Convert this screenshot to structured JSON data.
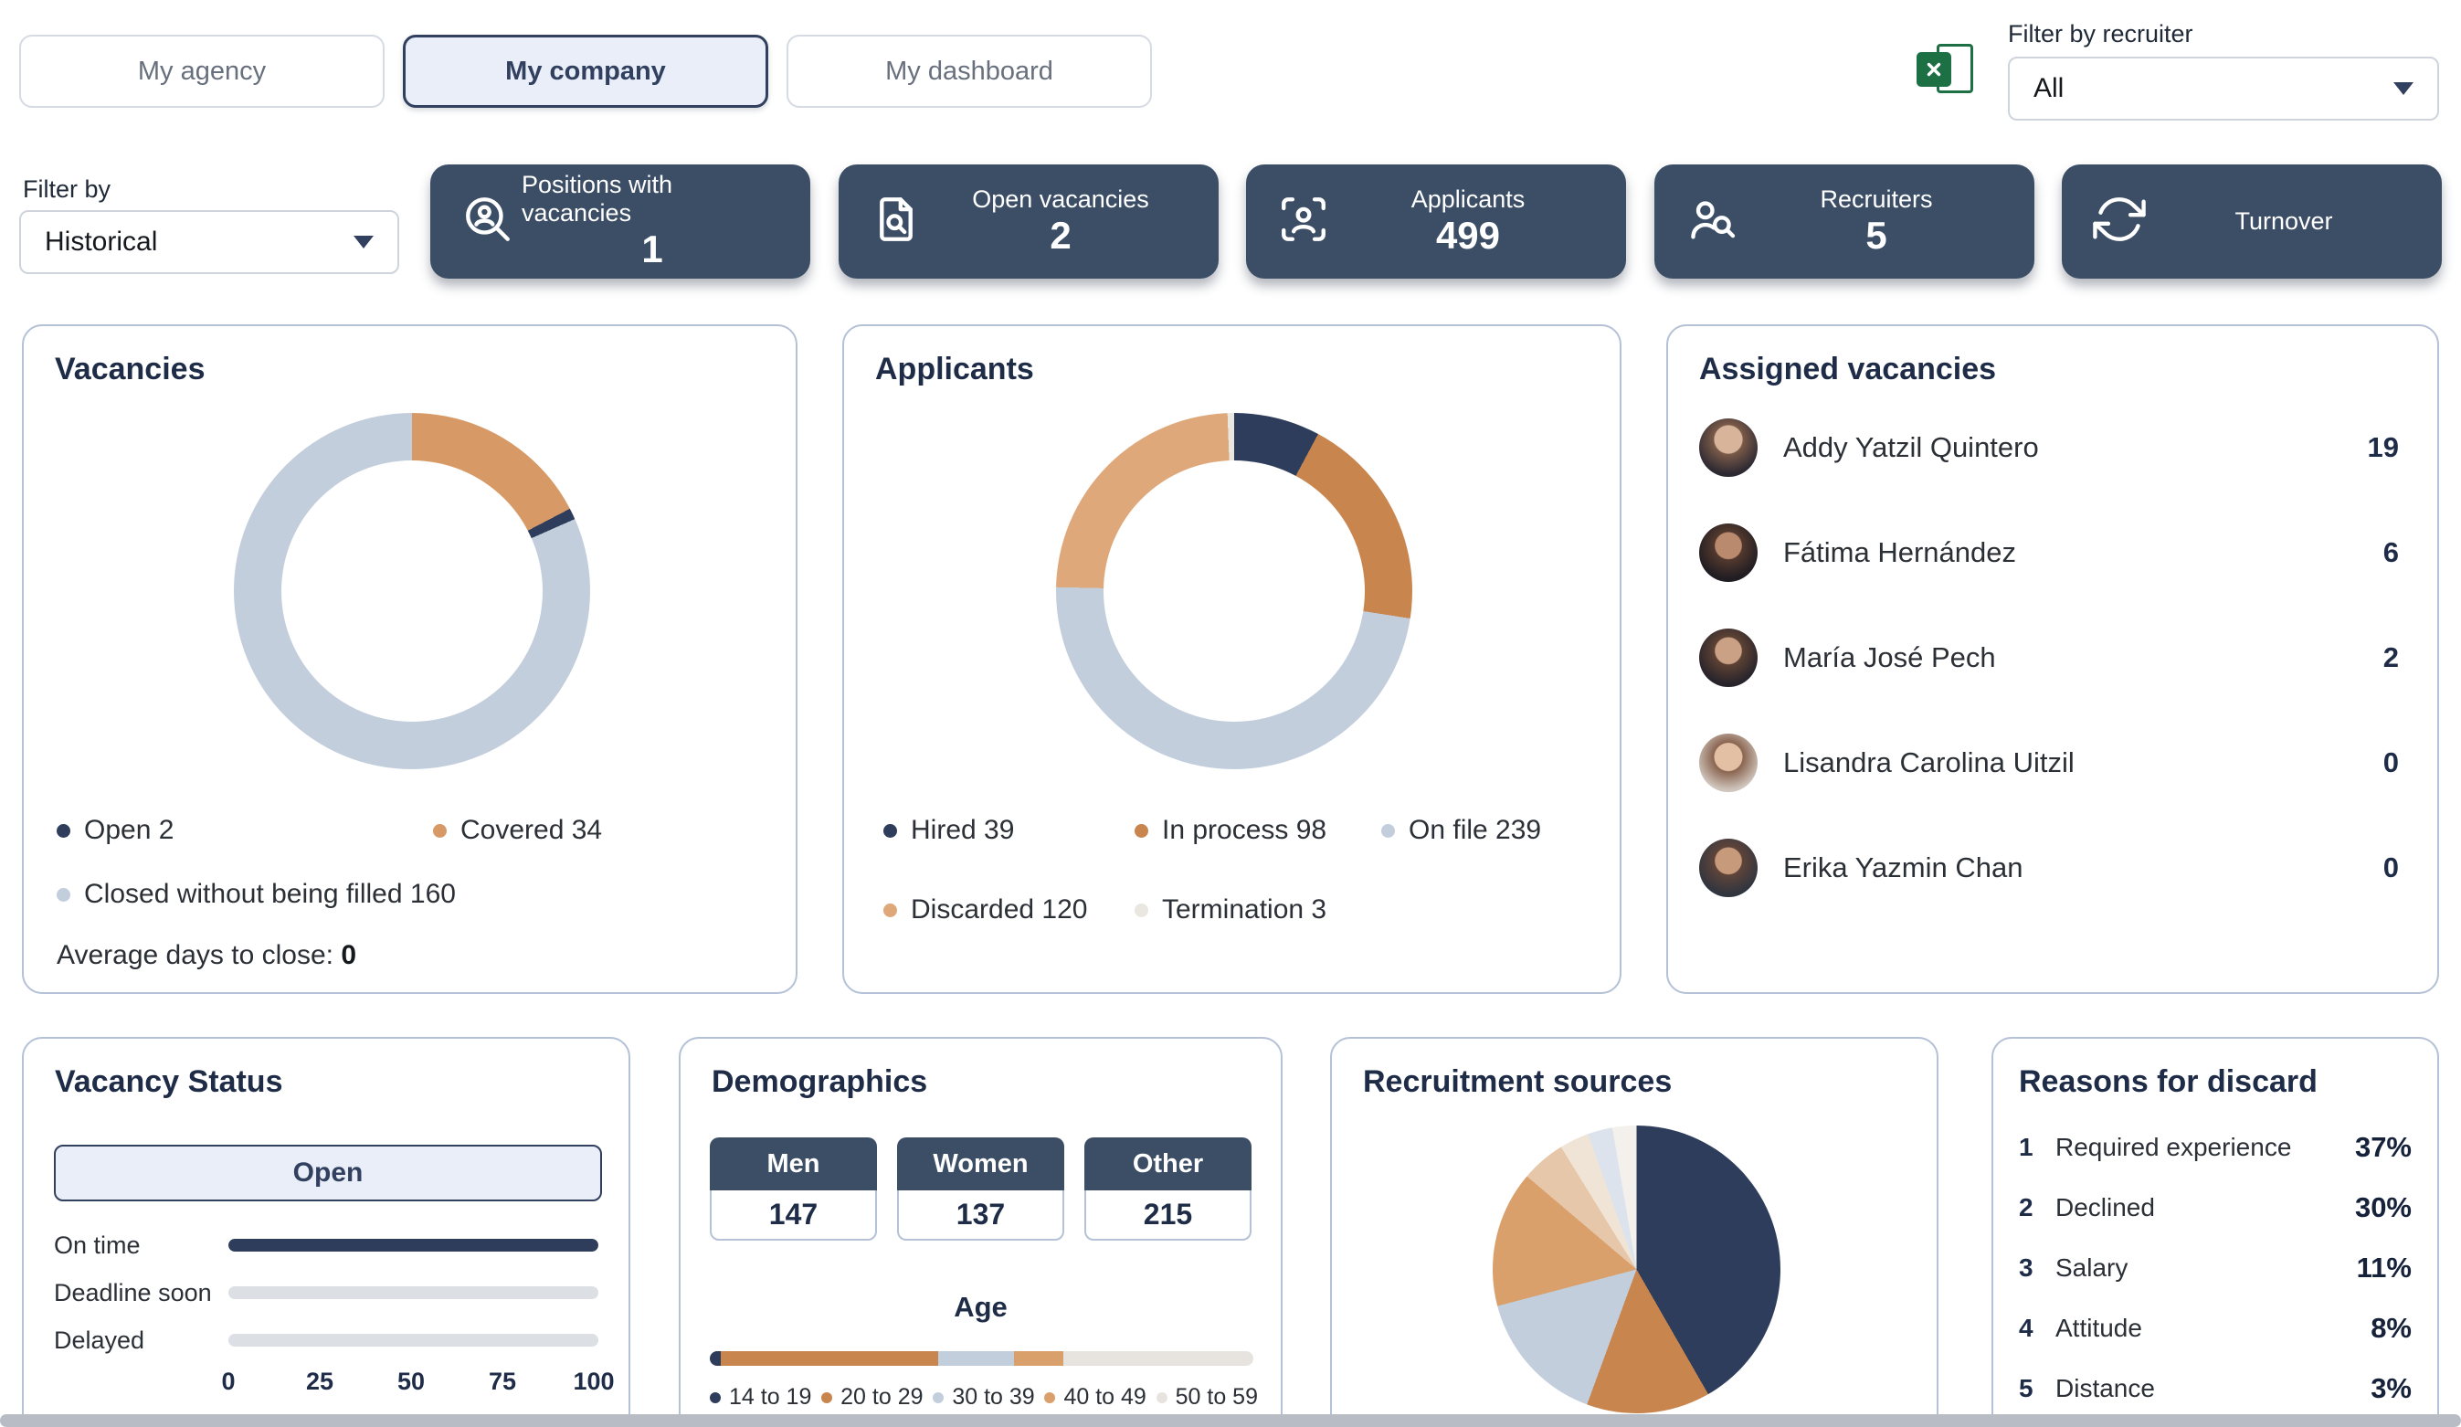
{
  "header": {
    "tabs": [
      {
        "label": "My agency",
        "active": false
      },
      {
        "label": "My company",
        "active": true
      },
      {
        "label": "My dashboard",
        "active": false
      }
    ],
    "export_icon": "excel-export-icon",
    "recruiter_filter": {
      "label": "Filter by recruiter",
      "value": "All",
      "icon": "chevron-down-icon"
    }
  },
  "period_filter": {
    "label": "Filter by",
    "value": "Historical",
    "icon": "chevron-down-icon"
  },
  "stats": [
    {
      "label": "Positions with vacancies",
      "value": "1",
      "icon": "person-search-icon"
    },
    {
      "label": "Open vacancies",
      "value": "2",
      "icon": "document-search-icon"
    },
    {
      "label": "Applicants",
      "value": "499",
      "icon": "applicant-scan-icon"
    },
    {
      "label": "Recruiters",
      "value": "5",
      "icon": "person-magnifier-icon"
    },
    {
      "label": "Turnover",
      "value": "",
      "icon": "refresh-icon"
    }
  ],
  "vacancies_panel": {
    "title": "Vacancies",
    "legend": [
      {
        "label": "Open 2",
        "color": "#2e3d5b"
      },
      {
        "label": "Covered 34",
        "color": "#d79a66"
      },
      {
        "label": "Closed without being filled 160",
        "color": "#c3cedd"
      }
    ],
    "average_label": "Average days to close:",
    "average_value": "0",
    "chart": {
      "type": "donut",
      "segments": [
        {
          "label": "Covered",
          "value": 34,
          "color": "#d79a66"
        },
        {
          "label": "Open",
          "value": 2,
          "color": "#2e3d5b"
        },
        {
          "label": "Closed without being filled",
          "value": 160,
          "color": "#c3cedd"
        }
      ]
    }
  },
  "applicants_panel": {
    "title": "Applicants",
    "legend": [
      {
        "label": "Hired 39",
        "color": "#2e3d5b"
      },
      {
        "label": "In process 98",
        "color": "#c9854e"
      },
      {
        "label": "On file 239",
        "color": "#c3cedd"
      },
      {
        "label": "Discarded 120",
        "color": "#dfa87a"
      },
      {
        "label": "Termination 3",
        "color": "#eae7e1"
      }
    ],
    "chart": {
      "type": "donut",
      "segments": [
        {
          "label": "Hired",
          "value": 39,
          "color": "#2e3d5b"
        },
        {
          "label": "In process",
          "value": 98,
          "color": "#c9854e"
        },
        {
          "label": "On file",
          "value": 239,
          "color": "#c3cedd"
        },
        {
          "label": "Discarded",
          "value": 120,
          "color": "#dfa87a"
        },
        {
          "label": "Termination",
          "value": 3,
          "color": "#eae7e1"
        }
      ]
    }
  },
  "assigned_panel": {
    "title": "Assigned vacancies",
    "rows": [
      {
        "name": "Addy Yatzil Quintero",
        "count": "19"
      },
      {
        "name": "Fátima Hernández",
        "count": "6"
      },
      {
        "name": "María José Pech",
        "count": "2"
      },
      {
        "name": "Lisandra Carolina Uitzil",
        "count": "0"
      },
      {
        "name": "Erika Yazmin Chan",
        "count": "0"
      }
    ]
  },
  "vacancy_status_panel": {
    "title": "Vacancy Status",
    "filter_button": "Open",
    "bar_color": "#2e3d5b",
    "bars": [
      {
        "label": "On time",
        "value": 100
      },
      {
        "label": "Deadline soon",
        "value": 0
      },
      {
        "label": "Delayed",
        "value": 0
      }
    ],
    "axis": [
      "0",
      "25",
      "50",
      "75",
      "100"
    ]
  },
  "demographics_panel": {
    "title": "Demographics",
    "gender": [
      {
        "label": "Men",
        "value": "147"
      },
      {
        "label": "Women",
        "value": "137"
      },
      {
        "label": "Other",
        "value": "215"
      }
    ],
    "age_title": "Age",
    "age_chart": {
      "type": "stacked-bar",
      "segments": [
        {
          "label": "14 to 19",
          "value": 2,
          "color": "#2e3d5b"
        },
        {
          "label": "20 to 29",
          "value": 40,
          "color": "#c9854e"
        },
        {
          "label": "30 to 39",
          "value": 14,
          "color": "#c3cedd"
        },
        {
          "label": "40 to 49",
          "value": 9,
          "color": "#d9a06c"
        },
        {
          "label": "50 to 59",
          "value": 35,
          "color": "#e7e4df"
        }
      ]
    }
  },
  "sources_panel": {
    "title": "Recruitment sources",
    "chart": {
      "type": "pie",
      "segments": [
        {
          "value": 41.7,
          "color": "#2e3d5b"
        },
        {
          "value": 13.9,
          "color": "#c9854e"
        },
        {
          "value": 15.3,
          "color": "#c3cedd"
        },
        {
          "value": 15.3,
          "color": "#d9a06c"
        },
        {
          "value": 5.0,
          "color": "#e6c7a9"
        },
        {
          "value": 3.3,
          "color": "#f0e4d7"
        },
        {
          "value": 2.8,
          "color": "#dde3ec"
        },
        {
          "value": 2.7,
          "color": "#f4f1ec"
        }
      ]
    }
  },
  "reasons_panel": {
    "title": "Reasons for discard",
    "rows": [
      {
        "rank": "1",
        "label": "Required experience",
        "value": "37%"
      },
      {
        "rank": "2",
        "label": "Declined",
        "value": "30%"
      },
      {
        "rank": "3",
        "label": "Salary",
        "value": "11%"
      },
      {
        "rank": "4",
        "label": "Attitude",
        "value": "8%"
      },
      {
        "rank": "5",
        "label": "Distance",
        "value": "3%"
      }
    ]
  }
}
